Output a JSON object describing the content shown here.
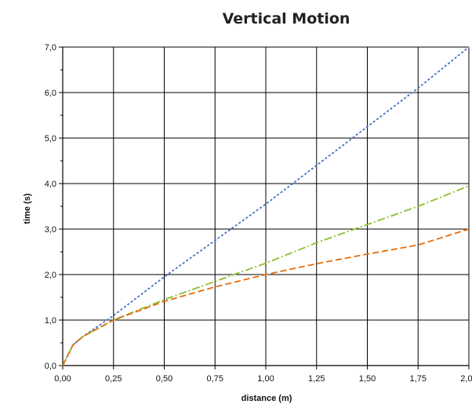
{
  "chart_data": {
    "type": "line",
    "title": "Vertical Motion",
    "xlabel": "distance (m)",
    "ylabel": "time (s)",
    "xlim": [
      0,
      2
    ],
    "ylim": [
      0,
      7
    ],
    "x_ticks": [
      "0,00",
      "0,25",
      "0,50",
      "0,75",
      "1,00",
      "1,25",
      "1,50",
      "1,75",
      "2,00"
    ],
    "y_ticks": [
      "0,0",
      "1,0",
      "2,0",
      "3,0",
      "4,0",
      "5,0",
      "6,0",
      "7,0"
    ],
    "grid": true,
    "legend": "none",
    "series": [
      {
        "color": "#4472c4",
        "dash": "dotted",
        "x": [
          0,
          0.05,
          0.1,
          0.25,
          0.5,
          0.75,
          1.0,
          1.25,
          1.5,
          1.75,
          2.0
        ],
        "y": [
          0,
          0.45,
          0.64,
          1.1,
          1.95,
          2.75,
          3.55,
          4.4,
          5.25,
          6.1,
          7.0
        ]
      },
      {
        "color": "#8dbf2e",
        "dash": "dash-dot",
        "x": [
          0,
          0.05,
          0.1,
          0.25,
          0.5,
          0.75,
          1.0,
          1.25,
          1.5,
          1.75,
          2.0
        ],
        "y": [
          0,
          0.45,
          0.64,
          1.0,
          1.45,
          1.85,
          2.25,
          2.7,
          3.1,
          3.5,
          3.95
        ]
      },
      {
        "color": "#e46c0a",
        "dash": "dashed",
        "x": [
          0,
          0.05,
          0.1,
          0.25,
          0.5,
          0.75,
          1.0,
          1.25,
          1.5,
          1.75,
          2.0
        ],
        "y": [
          0,
          0.45,
          0.64,
          1.0,
          1.41,
          1.73,
          2.0,
          2.24,
          2.45,
          2.65,
          3.0
        ]
      }
    ]
  }
}
